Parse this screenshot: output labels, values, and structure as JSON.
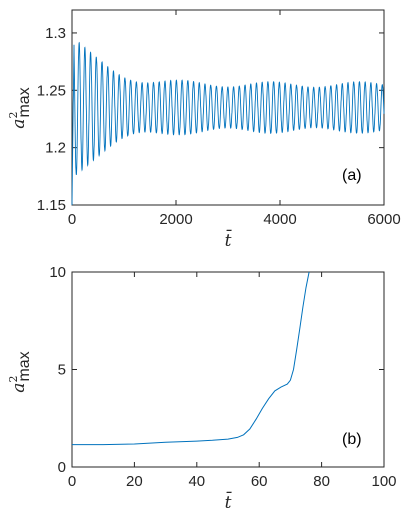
{
  "colors": {
    "series": "#0072BD",
    "axis": "#262626",
    "background": "#ffffff"
  },
  "chart_data": [
    {
      "type": "line",
      "panel_label": "(a)",
      "xlabel": "t̄",
      "ylabel_base": "a",
      "ylabel_sup": "2",
      "ylabel_sub": "max",
      "xlim": [
        0,
        6000
      ],
      "ylim": [
        1.15,
        1.32
      ],
      "xticks": [
        0,
        2000,
        4000,
        6000
      ],
      "xtick_labels": [
        "0",
        "2000",
        "4000",
        "6000"
      ],
      "yticks": [
        1.15,
        1.2,
        1.25,
        1.3
      ],
      "ytick_labels": [
        "1.15",
        "1.2",
        "1.25",
        "1.3"
      ],
      "grid": false,
      "legend": "none",
      "series": [
        {
          "description_values": "damped oscillation settling to mean 1.235",
          "mean": 1.235,
          "initial_amplitude": 0.062,
          "final_amplitude": 0.02,
          "decay_time": 600,
          "period": 110,
          "t_end": 6000
        }
      ]
    },
    {
      "type": "line",
      "panel_label": "(b)",
      "xlabel": "t̄",
      "ylabel_base": "a",
      "ylabel_sup": "2",
      "ylabel_sub": "max",
      "xlim": [
        0,
        100
      ],
      "ylim": [
        0,
        10
      ],
      "xticks": [
        0,
        20,
        40,
        60,
        80,
        100
      ],
      "xtick_labels": [
        "0",
        "20",
        "40",
        "60",
        "80",
        "100"
      ],
      "yticks": [
        0,
        5,
        10
      ],
      "ytick_labels": [
        "0",
        "5",
        "10"
      ],
      "grid": false,
      "legend": "none",
      "series": [
        {
          "x": [
            0,
            10,
            20,
            30,
            40,
            45,
            50,
            53,
            55,
            57,
            59,
            61,
            63,
            65,
            67,
            69,
            70,
            71,
            72,
            73,
            74,
            75,
            76
          ],
          "y": [
            1.15,
            1.15,
            1.18,
            1.27,
            1.33,
            1.37,
            1.43,
            1.52,
            1.65,
            1.95,
            2.45,
            3.0,
            3.5,
            3.9,
            4.1,
            4.25,
            4.45,
            5.0,
            6.0,
            7.1,
            8.2,
            9.2,
            10.0
          ]
        }
      ]
    }
  ]
}
